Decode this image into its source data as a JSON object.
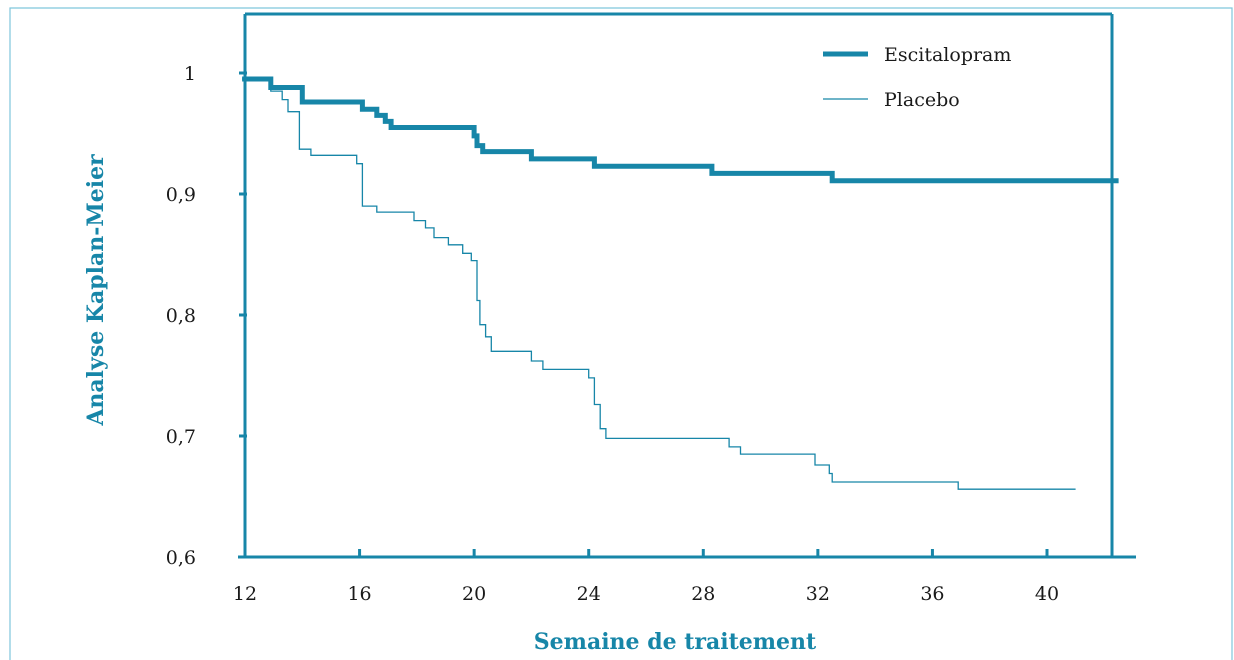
{
  "chart_data": {
    "type": "line",
    "title": "",
    "xlabel": "Semaine de traitement",
    "ylabel": "Analyse Kaplan-Meier",
    "xlim": [
      12,
      42.5
    ],
    "ylim": [
      0.6,
      1.04
    ],
    "x_ticks": [
      12,
      16,
      20,
      24,
      28,
      32,
      36,
      40
    ],
    "x_tick_labels": [
      "12",
      "16",
      "20",
      "24",
      "28",
      "32",
      "36",
      "40"
    ],
    "y_ticks": [
      0.6,
      0.7,
      0.8,
      0.9,
      1.0
    ],
    "y_tick_labels": [
      "0,6",
      "0,7",
      "0,8",
      "0,9",
      "1"
    ],
    "grid": false,
    "legend_position": "top-right",
    "colors": {
      "axis": "#1786a8",
      "series": "#1786a8",
      "frame": "#7fc6dc"
    },
    "series": [
      {
        "name": "Escitalopram",
        "step": true,
        "points": [
          [
            11.9,
            0.995
          ],
          [
            12.9,
            0.995
          ],
          [
            12.9,
            0.988
          ],
          [
            14.0,
            0.988
          ],
          [
            14.0,
            0.976
          ],
          [
            16.1,
            0.976
          ],
          [
            16.1,
            0.97
          ],
          [
            16.6,
            0.97
          ],
          [
            16.6,
            0.965
          ],
          [
            16.9,
            0.965
          ],
          [
            16.9,
            0.96
          ],
          [
            17.1,
            0.96
          ],
          [
            17.1,
            0.955
          ],
          [
            20.0,
            0.955
          ],
          [
            20.0,
            0.948
          ],
          [
            20.1,
            0.948
          ],
          [
            20.1,
            0.94
          ],
          [
            20.3,
            0.94
          ],
          [
            20.3,
            0.935
          ],
          [
            22.0,
            0.935
          ],
          [
            22.0,
            0.929
          ],
          [
            24.2,
            0.929
          ],
          [
            24.2,
            0.923
          ],
          [
            28.3,
            0.923
          ],
          [
            28.3,
            0.917
          ],
          [
            32.5,
            0.917
          ],
          [
            32.5,
            0.911
          ],
          [
            42.5,
            0.911
          ]
        ]
      },
      {
        "name": "Placebo",
        "step": true,
        "points": [
          [
            11.9,
            0.995
          ],
          [
            12.9,
            0.995
          ],
          [
            12.9,
            0.985
          ],
          [
            13.3,
            0.985
          ],
          [
            13.3,
            0.978
          ],
          [
            13.5,
            0.978
          ],
          [
            13.5,
            0.968
          ],
          [
            13.9,
            0.968
          ],
          [
            13.9,
            0.937
          ],
          [
            14.3,
            0.937
          ],
          [
            14.3,
            0.932
          ],
          [
            15.9,
            0.932
          ],
          [
            15.9,
            0.925
          ],
          [
            16.1,
            0.925
          ],
          [
            16.1,
            0.89
          ],
          [
            16.6,
            0.89
          ],
          [
            16.6,
            0.885
          ],
          [
            17.9,
            0.885
          ],
          [
            17.9,
            0.878
          ],
          [
            18.3,
            0.878
          ],
          [
            18.3,
            0.872
          ],
          [
            18.6,
            0.872
          ],
          [
            18.6,
            0.864
          ],
          [
            19.1,
            0.864
          ],
          [
            19.1,
            0.858
          ],
          [
            19.6,
            0.858
          ],
          [
            19.6,
            0.851
          ],
          [
            19.9,
            0.851
          ],
          [
            19.9,
            0.845
          ],
          [
            20.1,
            0.845
          ],
          [
            20.1,
            0.812
          ],
          [
            20.2,
            0.812
          ],
          [
            20.2,
            0.792
          ],
          [
            20.4,
            0.792
          ],
          [
            20.4,
            0.782
          ],
          [
            20.6,
            0.782
          ],
          [
            20.6,
            0.77
          ],
          [
            22.0,
            0.77
          ],
          [
            22.0,
            0.762
          ],
          [
            22.4,
            0.762
          ],
          [
            22.4,
            0.755
          ],
          [
            24.0,
            0.755
          ],
          [
            24.0,
            0.748
          ],
          [
            24.2,
            0.748
          ],
          [
            24.2,
            0.726
          ],
          [
            24.4,
            0.726
          ],
          [
            24.4,
            0.706
          ],
          [
            24.6,
            0.706
          ],
          [
            24.6,
            0.698
          ],
          [
            28.9,
            0.698
          ],
          [
            28.9,
            0.691
          ],
          [
            29.3,
            0.691
          ],
          [
            29.3,
            0.685
          ],
          [
            31.9,
            0.685
          ],
          [
            31.9,
            0.676
          ],
          [
            32.4,
            0.676
          ],
          [
            32.4,
            0.669
          ],
          [
            32.5,
            0.669
          ],
          [
            32.5,
            0.662
          ],
          [
            36.9,
            0.662
          ],
          [
            36.9,
            0.656
          ],
          [
            41.0,
            0.656
          ]
        ]
      }
    ]
  }
}
